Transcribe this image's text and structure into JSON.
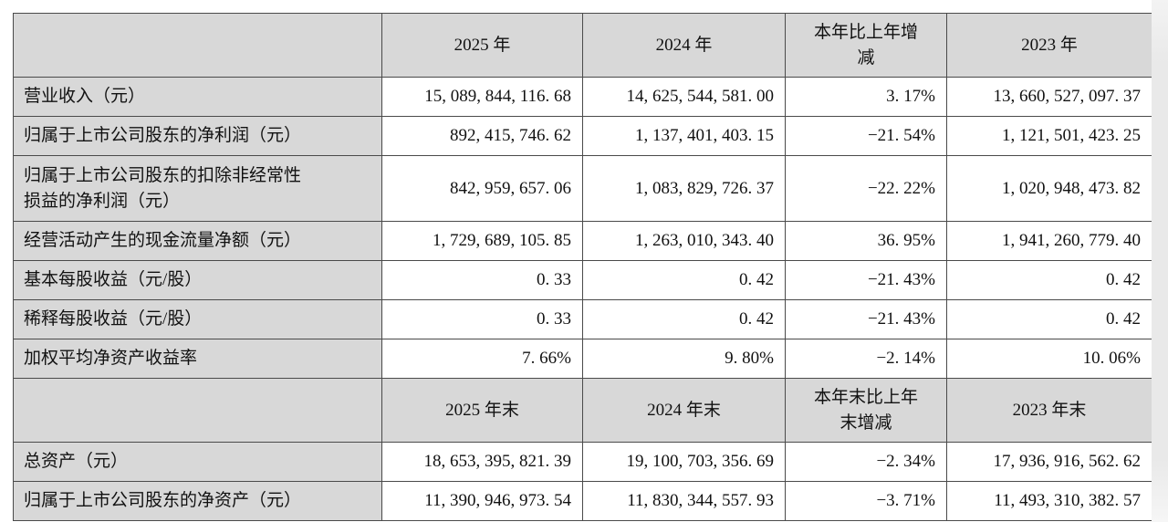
{
  "page": {
    "background": "#ffffff",
    "edge_strip_color": "#e9e9e9"
  },
  "table": {
    "grid_color": "#4a4a4a",
    "shaded_cell_color": "#d8d8d8",
    "body_cell_color": "#ffffff",
    "sections": [
      {
        "header": [
          "",
          "2025 年",
          "2024 年",
          "本年比上年增\n减",
          "2023 年"
        ],
        "rows": [
          {
            "label": "营业收入（元）",
            "values": [
              "15,089,844,116.68",
              "14,625,544,581.00",
              "3.17%",
              "13,660,527,097.37"
            ]
          },
          {
            "label": "归属于上市公司股东的净利润（元）",
            "values": [
              "892,415,746.62",
              "1,137,401,403.15",
              "−21.54%",
              "1,121,501,423.25"
            ]
          },
          {
            "label": "归属于上市公司股东的扣除非经常性\n损益的净利润（元）",
            "values": [
              "842,959,657.06",
              "1,083,829,726.37",
              "−22.22%",
              "1,020,948,473.82"
            ]
          },
          {
            "label": "经营活动产生的现金流量净额（元）",
            "values": [
              "1,729,689,105.85",
              "1,263,010,343.40",
              "36.95%",
              "1,941,260,779.40"
            ]
          },
          {
            "label": "基本每股收益（元/股）",
            "values": [
              "0.33",
              "0.42",
              "−21.43%",
              "0.42"
            ]
          },
          {
            "label": "稀释每股收益（元/股）",
            "values": [
              "0.33",
              "0.42",
              "−21.43%",
              "0.42"
            ]
          },
          {
            "label": "加权平均净资产收益率",
            "values": [
              "7.66%",
              "9.80%",
              "−2.14%",
              "10.06%"
            ]
          }
        ]
      },
      {
        "header": [
          "",
          "2025 年末",
          "2024 年末",
          "本年末比上年\n末增减",
          "2023 年末"
        ],
        "rows": [
          {
            "label": "总资产（元）",
            "values": [
              "18,653,395,821.39",
              "19,100,703,356.69",
              "−2.34%",
              "17,936,916,562.62"
            ]
          },
          {
            "label": "归属于上市公司股东的净资产（元）",
            "values": [
              "11,390,946,973.54",
              "11,830,344,557.93",
              "−3.71%",
              "11,493,310,382.57"
            ]
          }
        ]
      }
    ]
  }
}
